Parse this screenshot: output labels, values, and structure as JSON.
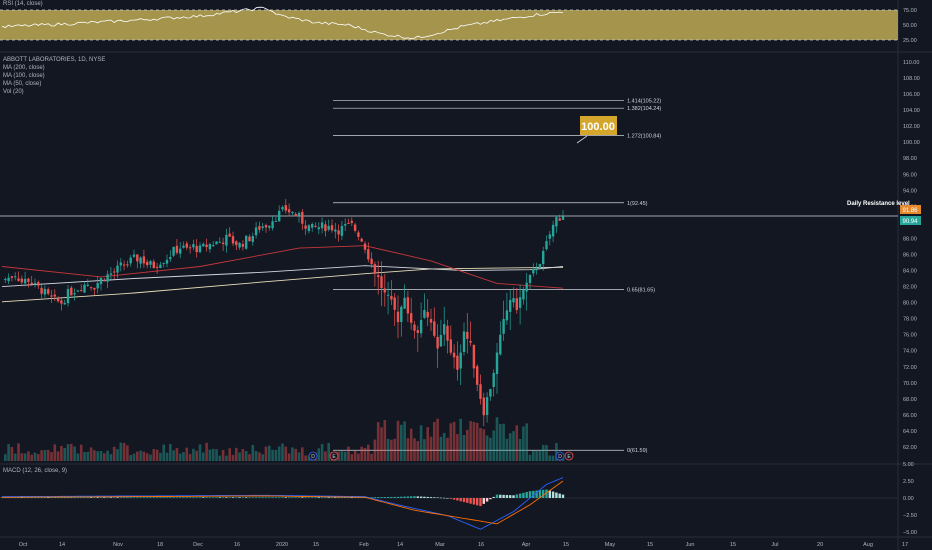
{
  "colors": {
    "bg": "#131722",
    "up": "#26a69a",
    "down": "#ef5350",
    "rsi_band": "#c9b458",
    "ma200": "#e8dcb8",
    "ma100": "#d1d4dc",
    "ma50": "#c4373a",
    "macd": "#2962ff",
    "signal": "#ff6d00",
    "fib": "#d1d4dc",
    "callout": "#d4a72c"
  },
  "header": {
    "symbol": "ABBOTT LABORATORIES, 1D, NYSE",
    "indicators": [
      "MA (200, close)",
      "MA (100, close)",
      "MA (50, close)",
      "Vol (20)"
    ]
  },
  "rsi_panel": {
    "label": "RSI (14, close)",
    "ticks": [
      "75.00",
      "50.00",
      "25.00"
    ]
  },
  "macd_panel": {
    "label": "MACD (12, 26, close, 9)",
    "ticks": [
      "5.00",
      "2.50",
      "0.00",
      "−2.50",
      "−5.00"
    ]
  },
  "price_axis": [
    "110.00",
    "108.00",
    "106.00",
    "104.00",
    "102.00",
    "100.00",
    "98.00",
    "96.00",
    "94.00",
    "92.00",
    "90.00",
    "88.00",
    "86.00",
    "84.00",
    "82.00",
    "80.00",
    "78.00",
    "76.00",
    "74.00",
    "72.00",
    "70.00",
    "68.00",
    "66.00",
    "64.00",
    "62.00"
  ],
  "time_axis": [
    "Oct",
    "14",
    "Nov",
    "18",
    "Dec",
    "16",
    "2020",
    "15",
    "Feb",
    "14",
    "Mar",
    "16",
    "Apr",
    "15",
    "May",
    "15",
    "Jun",
    "15",
    "Jul",
    "20",
    "Aug",
    "17"
  ],
  "fib_levels": [
    {
      "label": "1.414(105.22)",
      "value": 105.22
    },
    {
      "label": "1.382(104.24)",
      "value": 104.24
    },
    {
      "label": "1.272(100.84)",
      "value": 100.84
    },
    {
      "label": "1(92.45)",
      "value": 92.45
    },
    {
      "label": "0.65(81.65)",
      "value": 81.65
    },
    {
      "label": "0(61.59)",
      "value": 61.59
    }
  ],
  "resistance": {
    "label": "Daily Resistance level",
    "value": 91.4
  },
  "target": {
    "label": "100.00"
  },
  "price_tags": {
    "high": "91.86",
    "last": "90.94"
  },
  "event_markers": [
    "D",
    "E",
    "D",
    "E"
  ],
  "chart_data": {
    "type": "candlestick",
    "symbol": "ABBOTT LABORATORIES, 1D, NYSE",
    "ylim": [
      61,
      111
    ],
    "x": [
      "2019-10",
      "2019-10-14",
      "2019-11",
      "2019-11-18",
      "2019-12",
      "2019-12-16",
      "2020",
      "2020-01-15",
      "2020-02",
      "2020-02-14",
      "2020-03",
      "2020-03-16",
      "2020-04",
      "2020-04-15",
      "2020-05",
      "2020-05-15",
      "2020-06",
      "2020-06-15",
      "2020-07",
      "2020-07-20",
      "2020-08",
      "2020-08-17"
    ],
    "close_path": [
      [
        0,
        82.8
      ],
      [
        2,
        83.1
      ],
      [
        4,
        83.6
      ],
      [
        6,
        82.6
      ],
      [
        8,
        82.9
      ],
      [
        10,
        82.0
      ],
      [
        12,
        81.6
      ],
      [
        14,
        80.7
      ],
      [
        16,
        80.2
      ],
      [
        18,
        80.0
      ],
      [
        20,
        81.1
      ],
      [
        22,
        81.6
      ],
      [
        24,
        82.1
      ],
      [
        26,
        82.4
      ],
      [
        28,
        82.1
      ],
      [
        30,
        82.9
      ],
      [
        32,
        83.4
      ],
      [
        34,
        83.8
      ],
      [
        36,
        84.5
      ],
      [
        38,
        84.9
      ],
      [
        40,
        85.4
      ],
      [
        42,
        85.6
      ],
      [
        44,
        84.8
      ],
      [
        46,
        84.6
      ],
      [
        48,
        85.2
      ],
      [
        50,
        85.6
      ],
      [
        52,
        86.4
      ],
      [
        54,
        86.9
      ],
      [
        56,
        86.6
      ],
      [
        58,
        87.0
      ],
      [
        60,
        86.6
      ],
      [
        62,
        87.1
      ],
      [
        64,
        87.4
      ],
      [
        66,
        87.6
      ],
      [
        68,
        88.0
      ],
      [
        70,
        87.6
      ],
      [
        72,
        87.2
      ],
      [
        74,
        87.8
      ],
      [
        76,
        88.4
      ],
      [
        78,
        89.4
      ],
      [
        80,
        89.7
      ],
      [
        82,
        90.4
      ],
      [
        84,
        91.1
      ],
      [
        86,
        91.6
      ],
      [
        88,
        91.2
      ],
      [
        90,
        90.6
      ],
      [
        92,
        89.7
      ],
      [
        94,
        89.2
      ],
      [
        96,
        89.4
      ],
      [
        98,
        89.5
      ],
      [
        100,
        89.4
      ],
      [
        102,
        89.1
      ],
      [
        104,
        89.4
      ],
      [
        106,
        89.6
      ],
      [
        108,
        88.6
      ],
      [
        110,
        87.0
      ],
      [
        112,
        84.8
      ],
      [
        114,
        83.0
      ],
      [
        116,
        81.0
      ],
      [
        118,
        79.8
      ],
      [
        120,
        78.0
      ],
      [
        122,
        81.0
      ],
      [
        124,
        77.0
      ],
      [
        126,
        76.5
      ],
      [
        128,
        79.5
      ],
      [
        130,
        77.0
      ],
      [
        132,
        74.0
      ],
      [
        134,
        77.5
      ],
      [
        136,
        73.5
      ],
      [
        138,
        72.0
      ],
      [
        140,
        76.5
      ],
      [
        142,
        74.5
      ],
      [
        144,
        70.0
      ],
      [
        146,
        66.5
      ],
      [
        148,
        69.5
      ],
      [
        150,
        73.5
      ],
      [
        152,
        77.5
      ],
      [
        154,
        80.5
      ],
      [
        156,
        79.5
      ],
      [
        158,
        81.5
      ],
      [
        160,
        83.0
      ],
      [
        162,
        84.5
      ],
      [
        164,
        86.0
      ],
      [
        166,
        88.5
      ],
      [
        168,
        90.5
      ],
      [
        170,
        90.94
      ]
    ],
    "ma_points": {
      "MA (200, close)": [
        [
          0,
          80.1
        ],
        [
          40,
          81.2
        ],
        [
          80,
          82.6
        ],
        [
          110,
          83.6
        ],
        [
          130,
          84.2
        ],
        [
          150,
          84.3
        ],
        [
          170,
          84.4
        ]
      ],
      "MA (100, close)": [
        [
          0,
          82.0
        ],
        [
          40,
          83.0
        ],
        [
          80,
          83.8
        ],
        [
          110,
          84.6
        ],
        [
          140,
          84.0
        ],
        [
          160,
          84.1
        ],
        [
          170,
          84.5
        ]
      ],
      "MA (50, close)": [
        [
          0,
          84.5
        ],
        [
          30,
          83.2
        ],
        [
          60,
          84.5
        ],
        [
          90,
          86.8
        ],
        [
          110,
          87.1
        ],
        [
          130,
          85.2
        ],
        [
          150,
          82.4
        ],
        [
          170,
          81.8
        ]
      ]
    },
    "rsi": [
      [
        0,
        47
      ],
      [
        20,
        52
      ],
      [
        40,
        58
      ],
      [
        60,
        65
      ],
      [
        70,
        72
      ],
      [
        80,
        79
      ],
      [
        84,
        66
      ],
      [
        95,
        54
      ],
      [
        105,
        50
      ],
      [
        115,
        35
      ],
      [
        125,
        28
      ],
      [
        130,
        34
      ],
      [
        140,
        48
      ],
      [
        150,
        57
      ],
      [
        160,
        66
      ],
      [
        170,
        72
      ]
    ],
    "macd": [
      [
        0,
        0.2
      ],
      [
        40,
        0.3
      ],
      [
        80,
        0.4
      ],
      [
        110,
        0.2
      ],
      [
        120,
        -1.0
      ],
      [
        135,
        -2.6
      ],
      [
        145,
        -4.6
      ],
      [
        155,
        -2.0
      ],
      [
        165,
        2.0
      ],
      [
        170,
        3.0
      ]
    ],
    "macd_signal": [
      [
        0,
        0.1
      ],
      [
        40,
        0.2
      ],
      [
        80,
        0.3
      ],
      [
        110,
        0.1
      ],
      [
        125,
        -1.8
      ],
      [
        140,
        -3.0
      ],
      [
        150,
        -3.8
      ],
      [
        160,
        -1.0
      ],
      [
        170,
        2.5
      ]
    ]
  }
}
